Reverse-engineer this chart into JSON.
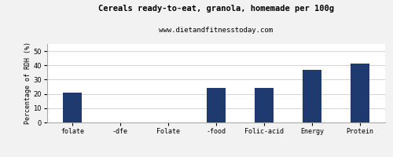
{
  "title": "Cereals ready-to-eat, granola, homemade per 100g",
  "subtitle": "www.dietandfitnesstoday.com",
  "categories": [
    "folate",
    "-dfe",
    "Folate",
    "-food",
    "Folic-acid",
    "Energy",
    "Protein"
  ],
  "values": [
    21,
    0,
    0,
    24,
    24,
    37,
    41
  ],
  "bar_color": "#1e3a6e",
  "ylabel": "Percentage of RDH (%)",
  "ylim": [
    0,
    55
  ],
  "yticks": [
    0,
    10,
    20,
    30,
    40,
    50
  ],
  "background_color": "#f2f2f2",
  "plot_bg_color": "#ffffff",
  "title_fontsize": 7.5,
  "subtitle_fontsize": 6.5,
  "ylabel_fontsize": 6.0,
  "tick_fontsize": 6.0,
  "bar_width": 0.4
}
